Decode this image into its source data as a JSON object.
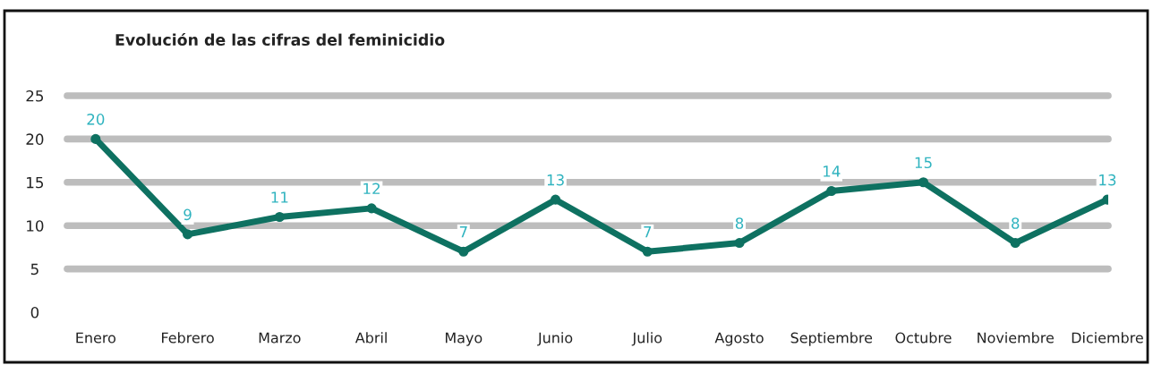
{
  "chart_data": {
    "type": "line",
    "title": "Evolución de las cifras del feminicidio",
    "categories": [
      "Enero",
      "Febrero",
      "Marzo",
      "Abril",
      "Mayo",
      "Junio",
      "Julio",
      "Agosto",
      "Septiembre",
      "Octubre",
      "Noviembre",
      "Diciembre"
    ],
    "series": [
      {
        "color": "#0e7161",
        "values": [
          20,
          9,
          11,
          12,
          7,
          13,
          7,
          8,
          14,
          15,
          8,
          13
        ]
      }
    ],
    "ylim": [
      0,
      25
    ],
    "yticks": [
      0,
      5,
      10,
      15,
      20,
      25
    ],
    "grid": "y",
    "marker": "circle",
    "line_style": "solid",
    "data_labels": true
  }
}
